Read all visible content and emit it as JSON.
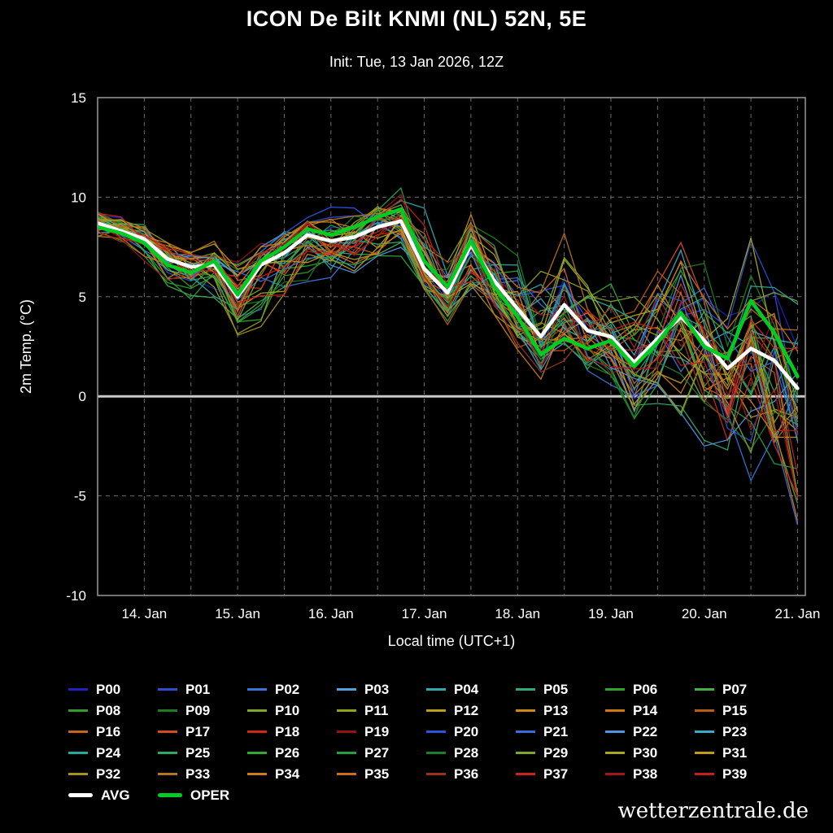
{
  "header": {
    "title": "ICON De Bilt KNMI (NL) 52N, 5E",
    "subtitle": "Init: Tue, 13 Jan 2026, 12Z"
  },
  "watermark": "wetterzentrale.de",
  "legend": {
    "avg_label": "AVG",
    "oper_label": "OPER"
  },
  "chart_data": {
    "type": "line",
    "title": "ICON De Bilt KNMI (NL) 52N, 5E",
    "subtitle": "Init: Tue, 13 Jan 2026, 12Z",
    "xlabel": "Local time (UTC+1)",
    "ylabel": "2m Temp. (°C)",
    "ylim": [
      -10,
      15
    ],
    "y_ticks": [
      15,
      10,
      5,
      0,
      -5,
      -10
    ],
    "x_tick_labels": [
      "14. Jan",
      "15. Jan",
      "16. Jan",
      "17. Jan",
      "18. Jan",
      "19. Jan",
      "20. Jan",
      "21. Jan"
    ],
    "x_tick_hours": [
      12,
      36,
      60,
      84,
      108,
      132,
      156,
      180
    ],
    "x_domain_hours": [
      0,
      182
    ],
    "time_step_hours": 6,
    "grid": {
      "dashed": true,
      "color": "#6d6d6d",
      "zero_line_color": "#c8c8c8",
      "frame_color": "#999999"
    },
    "x_hours": [
      0,
      6,
      12,
      18,
      24,
      30,
      36,
      42,
      48,
      54,
      60,
      66,
      72,
      78,
      84,
      90,
      96,
      102,
      108,
      114,
      120,
      126,
      132,
      138,
      144,
      150,
      156,
      162,
      168,
      174,
      180
    ],
    "series": [
      {
        "name": "AVG",
        "color": "#ffffff",
        "width": 4.5,
        "values": [
          8.7,
          8.3,
          7.9,
          6.9,
          6.5,
          6.6,
          5.0,
          6.6,
          7.2,
          8.1,
          7.8,
          8.0,
          8.5,
          8.8,
          6.4,
          5.2,
          7.6,
          5.8,
          4.4,
          3.0,
          4.6,
          3.3,
          3.0,
          1.7,
          2.9,
          4.0,
          2.8,
          1.4,
          2.4,
          1.8,
          0.4
        ]
      },
      {
        "name": "OPER",
        "color": "#00cc22",
        "width": 4.5,
        "values": [
          8.5,
          8.2,
          7.7,
          6.6,
          6.2,
          6.8,
          5.1,
          6.8,
          7.5,
          8.4,
          8.1,
          8.5,
          9.0,
          9.4,
          6.8,
          5.5,
          7.8,
          5.5,
          4.0,
          2.1,
          2.9,
          2.4,
          2.8,
          1.5,
          2.7,
          4.2,
          2.5,
          1.9,
          4.8,
          3.2,
          1.0
        ]
      }
    ],
    "ensemble": {
      "envelope_min": [
        7.8,
        7.3,
        6.5,
        5.2,
        4.2,
        4.5,
        2.5,
        3.5,
        4.8,
        5.5,
        5.8,
        6.0,
        6.5,
        6.8,
        5.0,
        3.5,
        4.5,
        3.5,
        2.0,
        0.5,
        1.5,
        0.5,
        0.3,
        -1.5,
        -0.5,
        -1.0,
        -2.5,
        -4.0,
        -5.5,
        -6.0,
        -8.5
      ],
      "envelope_max": [
        9.5,
        9.2,
        8.8,
        8.2,
        7.8,
        7.8,
        7.2,
        8.0,
        8.6,
        9.3,
        9.5,
        9.8,
        10.2,
        10.8,
        9.8,
        8.5,
        9.7,
        8.5,
        7.5,
        8.3,
        8.8,
        7.0,
        6.5,
        5.5,
        7.0,
        8.5,
        7.0,
        6.0,
        9.0,
        6.3,
        6.0
      ],
      "members": [
        {
          "label": "P00",
          "color": "#2020bb"
        },
        {
          "label": "P01",
          "color": "#2c4ecf"
        },
        {
          "label": "P02",
          "color": "#3b72d8"
        },
        {
          "label": "P03",
          "color": "#52a0dd"
        },
        {
          "label": "P04",
          "color": "#2fa9ab"
        },
        {
          "label": "P05",
          "color": "#2faa70"
        },
        {
          "label": "P06",
          "color": "#2da82d"
        },
        {
          "label": "P07",
          "color": "#45b245"
        },
        {
          "label": "P08",
          "color": "#2f9e2f"
        },
        {
          "label": "P09",
          "color": "#1e7d1e"
        },
        {
          "label": "P10",
          "color": "#7ca62c"
        },
        {
          "label": "P11",
          "color": "#93a21e"
        },
        {
          "label": "P12",
          "color": "#b99f1a"
        },
        {
          "label": "P13",
          "color": "#cc8a1c"
        },
        {
          "label": "P14",
          "color": "#d1771a"
        },
        {
          "label": "P15",
          "color": "#b85e14"
        },
        {
          "label": "P16",
          "color": "#c2661f"
        },
        {
          "label": "P17",
          "color": "#d14d20"
        },
        {
          "label": "P18",
          "color": "#cc2a14"
        },
        {
          "label": "P19",
          "color": "#941414"
        },
        {
          "label": "P20",
          "color": "#2b55dd"
        },
        {
          "label": "P21",
          "color": "#3a6ed6"
        },
        {
          "label": "P22",
          "color": "#5293de"
        },
        {
          "label": "P23",
          "color": "#38abc9"
        },
        {
          "label": "P24",
          "color": "#27a89c"
        },
        {
          "label": "P25",
          "color": "#2fa866"
        },
        {
          "label": "P26",
          "color": "#31aa31"
        },
        {
          "label": "P27",
          "color": "#279f41"
        },
        {
          "label": "P28",
          "color": "#1d7d29"
        },
        {
          "label": "P29",
          "color": "#80a52d"
        },
        {
          "label": "P30",
          "color": "#a8a820"
        },
        {
          "label": "P31",
          "color": "#bf9d1a"
        },
        {
          "label": "P32",
          "color": "#a89122"
        },
        {
          "label": "P33",
          "color": "#b5741f"
        },
        {
          "label": "P34",
          "color": "#cc7c1f"
        },
        {
          "label": "P35",
          "color": "#d16a1a"
        },
        {
          "label": "P36",
          "color": "#9a311f"
        },
        {
          "label": "P37",
          "color": "#cc2222"
        },
        {
          "label": "P38",
          "color": "#a51515"
        },
        {
          "label": "P39",
          "color": "#c41f1f"
        }
      ]
    }
  }
}
